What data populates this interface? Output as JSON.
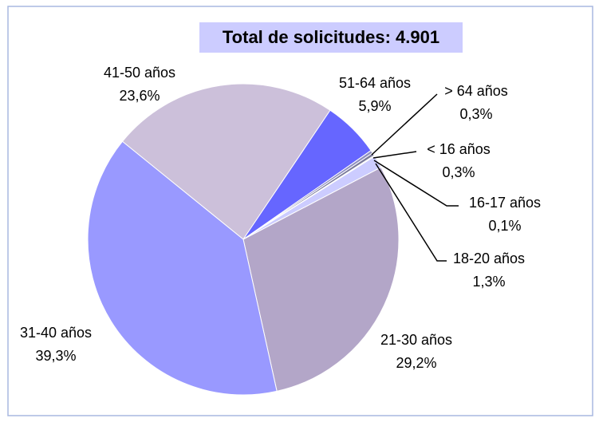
{
  "chart_data": {
    "type": "pie",
    "title": "Total de solicitudes: 4.901",
    "categories": [
      "41-50 años",
      "51-64 años",
      "> 64 años",
      "< 16 años",
      "16-17 años",
      "18-20 años",
      "21-30 años",
      "31-40 años"
    ],
    "values": [
      23.6,
      5.9,
      0.3,
      0.3,
      0.1,
      1.3,
      29.2,
      39.3
    ],
    "value_labels": [
      "23,6%",
      "5,9%",
      "0,3%",
      "0,3%",
      "0,1%",
      "1,3%",
      "29,2%",
      "39,3%"
    ],
    "colors": [
      "#ccc0da",
      "#6666ff",
      "#9090c0",
      "#7a7a9a",
      "#a0a0a0",
      "#ccccff",
      "#b3a6c8",
      "#9999ff"
    ]
  }
}
